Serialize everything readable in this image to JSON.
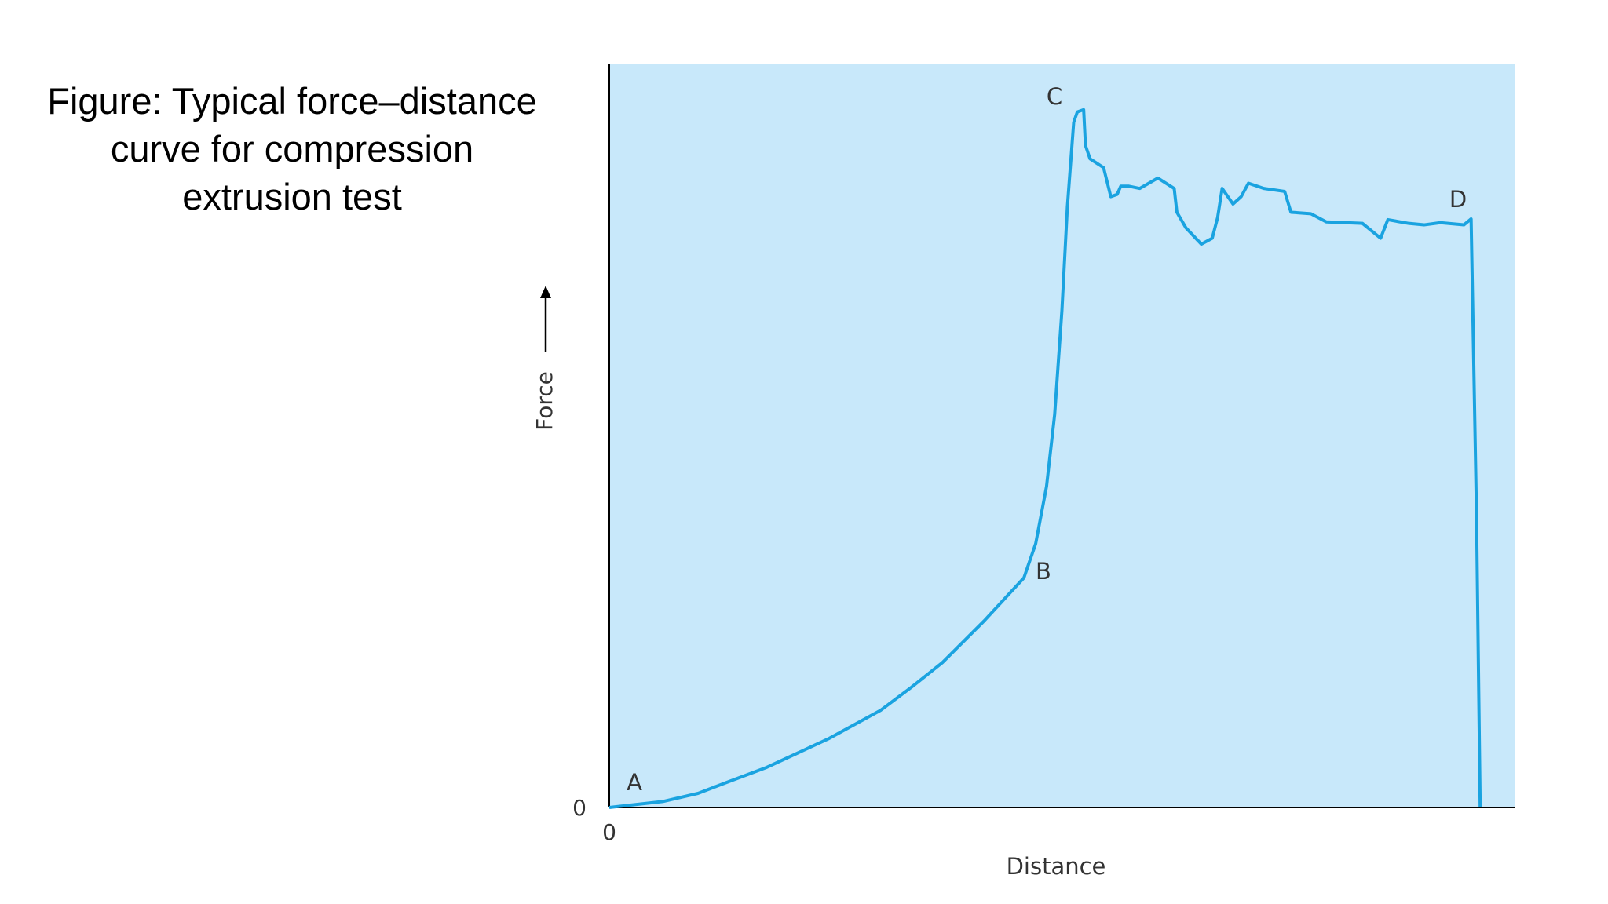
{
  "chart_data": {
    "type": "line",
    "title": "Figure: Typical force–distance curve for compression extrusion test",
    "x_label": "Distance",
    "y_label": "Force",
    "annotations": [
      "A",
      "B",
      "C",
      "D"
    ],
    "xlim": [
      0,
      100
    ],
    "ylim": [
      0,
      100
    ],
    "xticks": [
      0
    ],
    "yticks": [
      0
    ],
    "series": [
      {
        "color": "#1aa3e0",
        "x": [
          0,
          5.9,
          9.8,
          12.8,
          17.4,
          24.3,
          30.0,
          33.4,
          36.8,
          41.4,
          45.8,
          47.1,
          48.3,
          49.2,
          50.0,
          50.6,
          51.3,
          51.7,
          52.4,
          52.6,
          53.1,
          54.6,
          55.4,
          56.1,
          56.5,
          57.4,
          58.6,
          60.6,
          62.4,
          62.7,
          63.7,
          65.4,
          66.6,
          67.2,
          67.7,
          68.9,
          69.8,
          70.6,
          72.3,
          74.6,
          75.3,
          77.5,
          79.2,
          83.2,
          85.2,
          86.0,
          88.3,
          90.0,
          91.8,
          94.4,
          95.2,
          95.8,
          96.2
        ],
        "values": [
          0,
          0.8,
          1.9,
          3.3,
          5.4,
          9.3,
          13.1,
          16.2,
          19.5,
          25.1,
          30.9,
          35.5,
          43.2,
          52.9,
          66.9,
          80.8,
          92.2,
          93.6,
          93.9,
          89.1,
          87.3,
          86.1,
          82.2,
          82.5,
          83.6,
          83.6,
          83.3,
          84.7,
          83.3,
          80.1,
          78.0,
          75.8,
          76.6,
          79.4,
          83.3,
          81.2,
          82.2,
          84.0,
          83.3,
          82.9,
          80.1,
          79.9,
          78.8,
          78.6,
          76.6,
          79.1,
          78.6,
          78.4,
          78.7,
          78.4,
          79.2,
          39.0,
          0
        ]
      }
    ],
    "background": "#c8e8fa"
  }
}
